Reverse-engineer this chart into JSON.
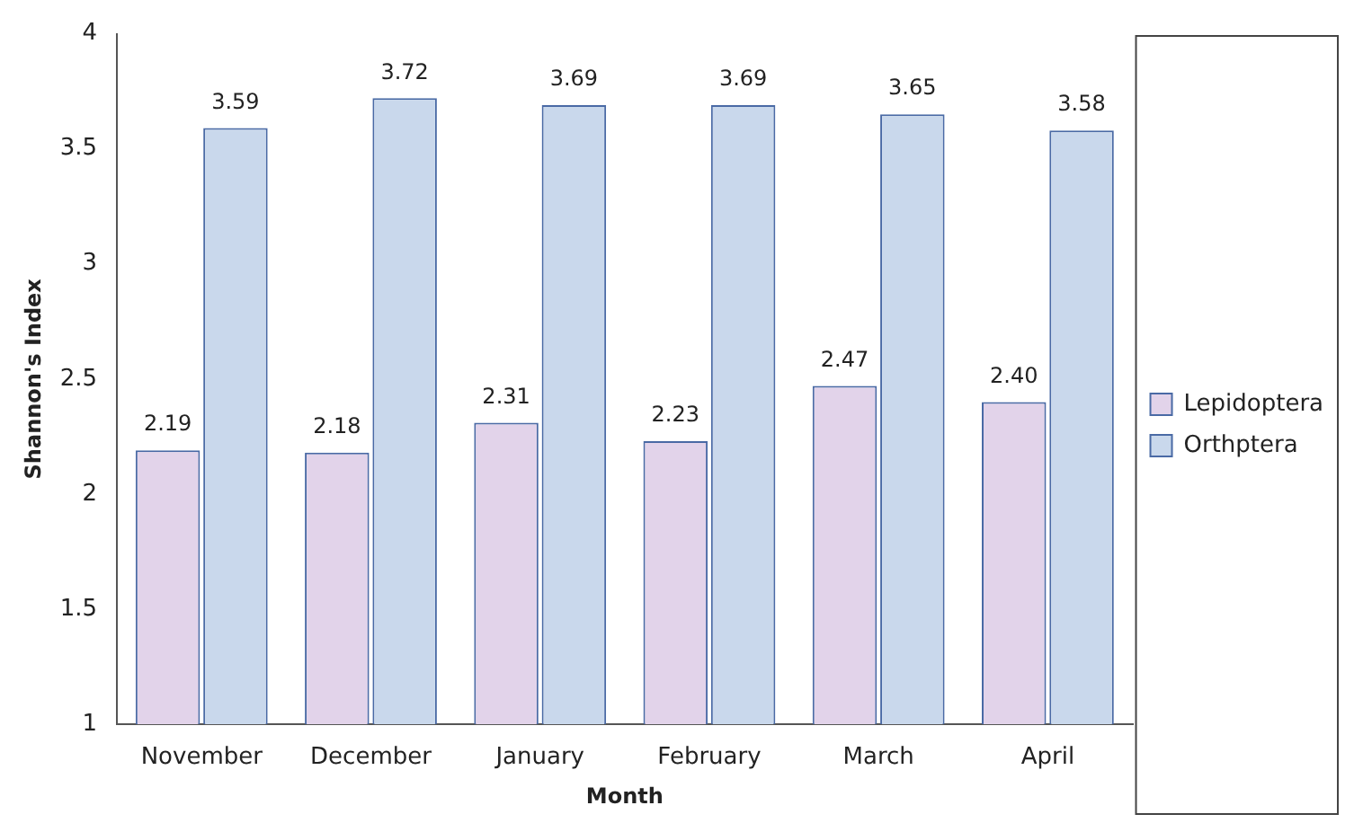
{
  "chart_data": {
    "type": "bar",
    "xlabel": "Month",
    "ylabel": "Shannon's Index",
    "categories": [
      "November",
      "December",
      "January",
      "February",
      "March",
      "April"
    ],
    "series": [
      {
        "name": "Lepidoptera",
        "color": "#e2d3ea",
        "values": [
          2.19,
          2.18,
          2.31,
          2.23,
          2.47,
          2.4
        ],
        "value_labels": [
          "2.19",
          "2.18",
          "2.31",
          "2.23",
          "2.47",
          "2.40"
        ]
      },
      {
        "name": "Orthptera",
        "color": "#c9d8ec",
        "values": [
          3.59,
          3.72,
          3.69,
          3.69,
          3.65,
          3.58
        ],
        "value_labels": [
          "3.59",
          "3.72",
          "3.69",
          "3.69",
          "3.65",
          "3.58"
        ]
      }
    ],
    "ylim": [
      1,
      4
    ],
    "yticks": [
      1,
      1.5,
      2,
      2.5,
      3,
      3.5,
      4
    ],
    "grid": false,
    "legend": "right"
  }
}
